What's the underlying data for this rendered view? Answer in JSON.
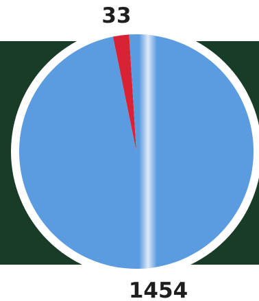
{
  "chart_data": {
    "type": "pie",
    "slices": [
      {
        "label": "33",
        "value": 33,
        "color": "#d92335"
      },
      {
        "label": "1454",
        "value": 1454,
        "color": "#5b9be0"
      }
    ],
    "background_band_color": "#183c28",
    "ring_color": "#ffffff",
    "legend": "none"
  }
}
